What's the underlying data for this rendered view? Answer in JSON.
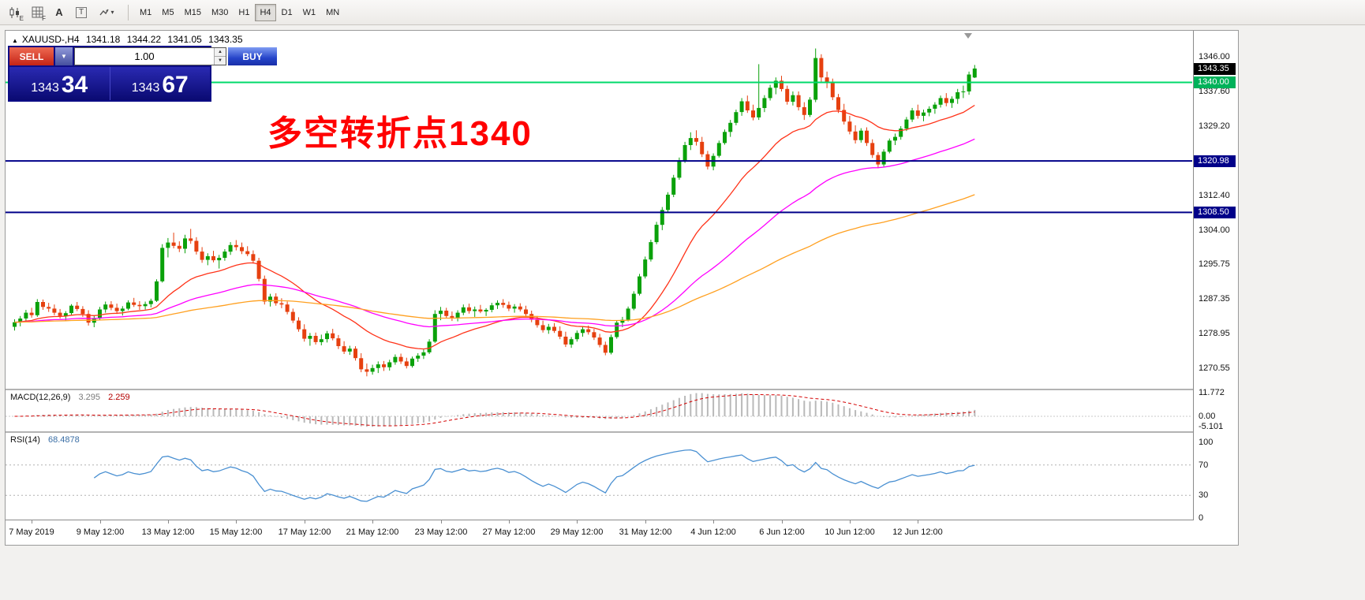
{
  "toolbar": {
    "tools": [
      {
        "name": "candlestick-display-tool",
        "sub": "E"
      },
      {
        "name": "indicator-grid-tool",
        "sub": "F"
      },
      {
        "name": "text-label-tool",
        "label": "A"
      },
      {
        "name": "text-box-tool",
        "label": "T"
      },
      {
        "name": "arrow-style-tool"
      }
    ],
    "timeframes": [
      "M1",
      "M5",
      "M15",
      "M30",
      "H1",
      "H4",
      "D1",
      "W1",
      "MN"
    ],
    "active_timeframe": "H4"
  },
  "chart_header": {
    "symbol_period": "XAUUSD-,H4",
    "open": "1341.18",
    "high": "1344.22",
    "low": "1341.05",
    "close": "1343.35"
  },
  "trade_panel": {
    "sell_label": "SELL",
    "buy_label": "BUY",
    "lot_size": "1.00",
    "bid_small": "1343",
    "bid_big": "34",
    "ask_small": "1343",
    "ask_big": "67"
  },
  "annotation": {
    "text": "多空转折点1340",
    "color": "#ff0000"
  },
  "hlines": [
    {
      "price": 1340.0,
      "color": "#00d96a",
      "width": 2
    },
    {
      "price": 1320.98,
      "color": "#000089",
      "width": 2
    },
    {
      "price": 1308.5,
      "color": "#000089",
      "width": 2
    }
  ],
  "price_axis": {
    "labels": [
      {
        "text": "1346.00",
        "price": 1346.0
      },
      {
        "text": "1337.60",
        "price": 1337.6
      },
      {
        "text": "1329.20",
        "price": 1329.2
      },
      {
        "text": "1312.40",
        "price": 1312.4
      },
      {
        "text": "1304.00",
        "price": 1304.0
      },
      {
        "text": "1295.75",
        "price": 1295.75
      },
      {
        "text": "1287.35",
        "price": 1287.35
      },
      {
        "text": "1278.95",
        "price": 1278.95
      },
      {
        "text": "1270.55",
        "price": 1270.55
      }
    ],
    "badges": [
      {
        "text": "1343.35",
        "price": 1343.35,
        "color": "#000000"
      },
      {
        "text": "1340.00",
        "price": 1340.0,
        "color": "#00b25a"
      },
      {
        "text": "1320.98",
        "price": 1320.98,
        "color": "#000089"
      },
      {
        "text": "1308.50",
        "price": 1308.5,
        "color": "#000089"
      }
    ]
  },
  "indicators": {
    "macd": {
      "label": "MACD(12,26,9)",
      "value_main": "3.295",
      "value_signal": "2.259",
      "axis_labels": [
        "11.772",
        "0.00",
        "-5.101"
      ],
      "fast": 12,
      "slow": 26,
      "signal": 9,
      "histogram_color": "#b9b9b9",
      "signal_color": "#d40000"
    },
    "rsi": {
      "label": "RSI(14)",
      "value": "68.4878",
      "axis_labels": [
        "100",
        "70",
        "30",
        "0"
      ],
      "levels": [
        70,
        30
      ],
      "period": 14,
      "line_color": "#4a90d2"
    }
  },
  "time_axis": {
    "labels": [
      {
        "text": "7 May 2019",
        "idx": 3
      },
      {
        "text": "9 May 12:00",
        "idx": 15
      },
      {
        "text": "13 May 12:00",
        "idx": 27
      },
      {
        "text": "15 May 12:00",
        "idx": 39
      },
      {
        "text": "17 May 12:00",
        "idx": 51
      },
      {
        "text": "21 May 12:00",
        "idx": 63
      },
      {
        "text": "23 May 12:00",
        "idx": 75
      },
      {
        "text": "27 May 12:00",
        "idx": 87
      },
      {
        "text": "29 May 12:00",
        "idx": 99
      },
      {
        "text": "31 May 12:00",
        "idx": 111
      },
      {
        "text": "4 Jun 12:00",
        "idx": 123
      },
      {
        "text": "6 Jun 12:00",
        "idx": 135
      },
      {
        "text": "10 Jun 12:00",
        "idx": 147
      },
      {
        "text": "12 Jun 12:00",
        "idx": 159
      }
    ]
  },
  "chart_data": {
    "type": "candlestick",
    "symbol": "XAUUSD-",
    "timeframe": "H4",
    "up_color": "#0aa10a",
    "down_color": "#e6400f",
    "visible_price_range": [
      1265.8,
      1352.5
    ],
    "moving_averages": [
      {
        "period": 21,
        "color": "#ff3319"
      },
      {
        "period": 55,
        "color": "#ff00ff"
      },
      {
        "period": 120,
        "color": "#ffa020"
      }
    ],
    "ohlc": [
      [
        1280.8,
        1282.6,
        1279.9,
        1281.9
      ],
      [
        1281.9,
        1283.4,
        1280.9,
        1282.8
      ],
      [
        1282.8,
        1284.9,
        1282.2,
        1284.2
      ],
      [
        1284.2,
        1285.4,
        1283.0,
        1283.6
      ],
      [
        1283.6,
        1287.5,
        1283.2,
        1286.8
      ],
      [
        1286.8,
        1287.4,
        1284.9,
        1285.6
      ],
      [
        1285.6,
        1286.6,
        1284.4,
        1285.2
      ],
      [
        1285.2,
        1286.2,
        1283.6,
        1284.2
      ],
      [
        1284.2,
        1285.1,
        1282.8,
        1283.4
      ],
      [
        1283.4,
        1284.6,
        1282.2,
        1284.1
      ],
      [
        1284.1,
        1286.3,
        1283.7,
        1285.9
      ],
      [
        1285.9,
        1286.8,
        1284.6,
        1285.1
      ],
      [
        1285.1,
        1285.8,
        1283.2,
        1283.9
      ],
      [
        1283.9,
        1284.8,
        1281.1,
        1281.8
      ],
      [
        1281.8,
        1283.4,
        1280.7,
        1282.9
      ],
      [
        1282.9,
        1285.6,
        1282.5,
        1285.0
      ],
      [
        1285.0,
        1286.9,
        1284.2,
        1286.2
      ],
      [
        1286.2,
        1287.0,
        1284.8,
        1285.4
      ],
      [
        1285.4,
        1286.4,
        1283.9,
        1284.6
      ],
      [
        1284.6,
        1285.8,
        1283.5,
        1285.2
      ],
      [
        1285.2,
        1287.2,
        1284.8,
        1286.7
      ],
      [
        1286.7,
        1287.8,
        1285.6,
        1286.1
      ],
      [
        1286.1,
        1287.0,
        1284.9,
        1285.8
      ],
      [
        1285.8,
        1286.9,
        1285.0,
        1286.3
      ],
      [
        1286.3,
        1287.6,
        1285.5,
        1287.1
      ],
      [
        1287.1,
        1292.3,
        1286.8,
        1291.8
      ],
      [
        1291.8,
        1300.8,
        1291.5,
        1299.9
      ],
      [
        1299.9,
        1302.3,
        1297.6,
        1301.2
      ],
      [
        1301.2,
        1303.6,
        1299.8,
        1300.4
      ],
      [
        1300.4,
        1301.5,
        1298.9,
        1299.7
      ],
      [
        1299.7,
        1303.1,
        1298.6,
        1302.2
      ],
      [
        1302.2,
        1304.5,
        1300.9,
        1301.6
      ],
      [
        1301.6,
        1302.5,
        1298.3,
        1299.0
      ],
      [
        1299.0,
        1300.1,
        1296.3,
        1297.0
      ],
      [
        1297.0,
        1298.6,
        1295.7,
        1297.9
      ],
      [
        1297.9,
        1299.2,
        1296.4,
        1296.9
      ],
      [
        1296.9,
        1298.2,
        1294.9,
        1297.5
      ],
      [
        1297.5,
        1299.6,
        1296.8,
        1299.0
      ],
      [
        1299.0,
        1301.3,
        1298.2,
        1300.6
      ],
      [
        1300.6,
        1301.8,
        1299.3,
        1300.1
      ],
      [
        1300.1,
        1301.2,
        1298.4,
        1299.1
      ],
      [
        1299.1,
        1300.3,
        1297.9,
        1298.4
      ],
      [
        1298.4,
        1299.3,
        1296.1,
        1296.8
      ],
      [
        1296.8,
        1297.5,
        1291.8,
        1292.4
      ],
      [
        1292.4,
        1293.2,
        1286.2,
        1286.9
      ],
      [
        1286.9,
        1288.8,
        1285.7,
        1288.1
      ],
      [
        1288.1,
        1288.9,
        1285.9,
        1286.5
      ],
      [
        1286.5,
        1287.7,
        1285.3,
        1286.2
      ],
      [
        1286.2,
        1286.9,
        1283.8,
        1284.4
      ],
      [
        1284.4,
        1285.2,
        1281.7,
        1282.3
      ],
      [
        1282.3,
        1283.1,
        1279.6,
        1280.2
      ],
      [
        1280.2,
        1281.4,
        1277.2,
        1277.9
      ],
      [
        1277.9,
        1279.3,
        1276.2,
        1278.6
      ],
      [
        1278.6,
        1279.4,
        1276.5,
        1277.1
      ],
      [
        1277.1,
        1278.9,
        1276.3,
        1277.8
      ],
      [
        1277.8,
        1279.8,
        1277.0,
        1279.2
      ],
      [
        1279.2,
        1280.3,
        1277.5,
        1278.0
      ],
      [
        1278.0,
        1278.8,
        1275.4,
        1276.1
      ],
      [
        1276.1,
        1277.3,
        1274.2,
        1274.8
      ],
      [
        1274.8,
        1276.2,
        1274.0,
        1275.5
      ],
      [
        1275.5,
        1276.1,
        1272.6,
        1273.2
      ],
      [
        1273.2,
        1274.4,
        1269.8,
        1270.5
      ],
      [
        1270.5,
        1271.9,
        1268.8,
        1269.9
      ],
      [
        1269.9,
        1271.6,
        1269.2,
        1270.8
      ],
      [
        1270.8,
        1272.4,
        1269.6,
        1271.7
      ],
      [
        1271.7,
        1272.5,
        1270.1,
        1271.0
      ],
      [
        1271.0,
        1272.8,
        1270.2,
        1272.2
      ],
      [
        1272.2,
        1274.1,
        1271.6,
        1273.5
      ],
      [
        1273.5,
        1274.3,
        1271.8,
        1272.4
      ],
      [
        1272.4,
        1273.3,
        1270.7,
        1271.3
      ],
      [
        1271.3,
        1273.6,
        1270.9,
        1273.1
      ],
      [
        1273.1,
        1274.4,
        1272.3,
        1273.8
      ],
      [
        1273.8,
        1275.3,
        1273.0,
        1274.6
      ],
      [
        1274.6,
        1277.8,
        1274.2,
        1277.2
      ],
      [
        1277.2,
        1284.8,
        1276.9,
        1283.9
      ],
      [
        1283.9,
        1285.6,
        1282.4,
        1284.7
      ],
      [
        1284.7,
        1285.4,
        1282.8,
        1283.4
      ],
      [
        1283.4,
        1284.5,
        1282.2,
        1283.0
      ],
      [
        1283.0,
        1284.8,
        1282.1,
        1284.2
      ],
      [
        1284.2,
        1286.2,
        1283.6,
        1285.5
      ],
      [
        1285.5,
        1286.4,
        1284.0,
        1284.6
      ],
      [
        1284.6,
        1285.7,
        1283.2,
        1285.0
      ],
      [
        1285.0,
        1286.1,
        1284.1,
        1284.5
      ],
      [
        1284.5,
        1285.3,
        1283.4,
        1284.9
      ],
      [
        1284.9,
        1286.6,
        1284.3,
        1286.0
      ],
      [
        1286.0,
        1287.2,
        1285.1,
        1286.6
      ],
      [
        1286.6,
        1287.5,
        1285.4,
        1286.1
      ],
      [
        1286.1,
        1286.9,
        1284.6,
        1285.2
      ],
      [
        1285.2,
        1286.3,
        1284.2,
        1285.7
      ],
      [
        1285.7,
        1286.5,
        1284.5,
        1285.0
      ],
      [
        1285.0,
        1285.9,
        1283.3,
        1283.9
      ],
      [
        1283.9,
        1284.7,
        1281.9,
        1282.5
      ],
      [
        1282.5,
        1283.4,
        1280.6,
        1281.2
      ],
      [
        1281.2,
        1282.3,
        1279.4,
        1280.0
      ],
      [
        1280.0,
        1281.5,
        1279.1,
        1280.8
      ],
      [
        1280.8,
        1281.7,
        1279.3,
        1279.8
      ],
      [
        1279.8,
        1280.9,
        1277.8,
        1278.4
      ],
      [
        1278.4,
        1279.6,
        1275.9,
        1276.5
      ],
      [
        1276.5,
        1278.3,
        1275.7,
        1277.8
      ],
      [
        1277.8,
        1279.9,
        1277.2,
        1279.3
      ],
      [
        1279.3,
        1280.8,
        1278.4,
        1280.2
      ],
      [
        1280.2,
        1281.1,
        1278.9,
        1279.5
      ],
      [
        1279.5,
        1280.3,
        1277.6,
        1278.2
      ],
      [
        1278.2,
        1279.1,
        1275.8,
        1276.4
      ],
      [
        1276.4,
        1277.2,
        1273.9,
        1274.5
      ],
      [
        1274.5,
        1278.9,
        1274.1,
        1278.3
      ],
      [
        1278.3,
        1282.4,
        1277.9,
        1281.8
      ],
      [
        1281.8,
        1283.2,
        1280.7,
        1282.5
      ],
      [
        1282.5,
        1285.7,
        1282.1,
        1285.2
      ],
      [
        1285.2,
        1289.4,
        1284.8,
        1288.8
      ],
      [
        1288.8,
        1293.6,
        1288.4,
        1293.0
      ],
      [
        1293.0,
        1297.8,
        1292.5,
        1297.1
      ],
      [
        1297.1,
        1301.9,
        1296.6,
        1301.3
      ],
      [
        1301.3,
        1306.2,
        1300.8,
        1305.5
      ],
      [
        1305.5,
        1309.8,
        1304.2,
        1309.1
      ],
      [
        1309.1,
        1313.4,
        1308.6,
        1312.8
      ],
      [
        1312.8,
        1317.6,
        1312.2,
        1316.9
      ],
      [
        1316.9,
        1321.8,
        1316.4,
        1321.1
      ],
      [
        1321.1,
        1325.6,
        1320.5,
        1324.8
      ],
      [
        1324.8,
        1327.9,
        1323.6,
        1326.5
      ],
      [
        1326.5,
        1328.4,
        1324.7,
        1325.6
      ],
      [
        1325.6,
        1326.8,
        1321.9,
        1322.6
      ],
      [
        1322.6,
        1323.4,
        1318.9,
        1319.6
      ],
      [
        1319.6,
        1322.8,
        1318.7,
        1322.2
      ],
      [
        1322.2,
        1325.9,
        1321.8,
        1325.3
      ],
      [
        1325.3,
        1328.6,
        1324.9,
        1328.0
      ],
      [
        1328.0,
        1330.9,
        1326.8,
        1330.2
      ],
      [
        1330.2,
        1333.4,
        1329.6,
        1332.8
      ],
      [
        1332.8,
        1336.2,
        1331.9,
        1335.4
      ],
      [
        1335.4,
        1336.8,
        1332.6,
        1333.2
      ],
      [
        1333.2,
        1334.6,
        1330.8,
        1331.5
      ],
      [
        1331.5,
        1344.4,
        1330.9,
        1333.8
      ],
      [
        1333.8,
        1336.9,
        1332.8,
        1336.2
      ],
      [
        1336.2,
        1339.4,
        1335.6,
        1338.7
      ],
      [
        1338.7,
        1341.2,
        1337.1,
        1340.4
      ],
      [
        1340.4,
        1341.6,
        1337.8,
        1338.4
      ],
      [
        1338.4,
        1339.2,
        1334.6,
        1335.3
      ],
      [
        1335.3,
        1337.8,
        1334.4,
        1336.9
      ],
      [
        1336.9,
        1337.8,
        1333.2,
        1334.0
      ],
      [
        1334.0,
        1335.2,
        1330.9,
        1332.1
      ],
      [
        1332.1,
        1336.4,
        1331.6,
        1335.8
      ],
      [
        1335.8,
        1348.2,
        1335.2,
        1345.9
      ],
      [
        1345.9,
        1346.8,
        1339.8,
        1341.2
      ],
      [
        1341.2,
        1342.6,
        1338.6,
        1340.1
      ],
      [
        1340.1,
        1340.9,
        1335.7,
        1336.4
      ],
      [
        1336.4,
        1337.2,
        1332.6,
        1333.3
      ],
      [
        1333.3,
        1334.8,
        1329.8,
        1330.5
      ],
      [
        1330.5,
        1331.9,
        1327.4,
        1328.1
      ],
      [
        1328.1,
        1329.6,
        1325.2,
        1326.0
      ],
      [
        1326.0,
        1328.9,
        1325.4,
        1328.3
      ],
      [
        1328.3,
        1329.1,
        1324.6,
        1325.3
      ],
      [
        1325.3,
        1326.2,
        1321.7,
        1322.4
      ],
      [
        1322.4,
        1323.1,
        1319.2,
        1320.1
      ],
      [
        1320.1,
        1323.8,
        1319.6,
        1323.2
      ],
      [
        1323.2,
        1326.4,
        1322.8,
        1325.9
      ],
      [
        1325.9,
        1327.6,
        1324.8,
        1326.8
      ],
      [
        1326.8,
        1329.4,
        1326.1,
        1328.8
      ],
      [
        1328.8,
        1331.6,
        1328.2,
        1331.0
      ],
      [
        1331.0,
        1333.8,
        1330.4,
        1333.2
      ],
      [
        1333.2,
        1334.6,
        1331.2,
        1331.9
      ],
      [
        1331.9,
        1333.4,
        1330.6,
        1332.7
      ],
      [
        1332.7,
        1334.2,
        1331.8,
        1333.6
      ],
      [
        1333.6,
        1335.2,
        1332.4,
        1334.6
      ],
      [
        1334.6,
        1336.8,
        1333.9,
        1336.2
      ],
      [
        1336.2,
        1337.4,
        1334.2,
        1335.0
      ],
      [
        1335.0,
        1336.6,
        1333.8,
        1336.0
      ],
      [
        1336.0,
        1338.4,
        1334.8,
        1337.6
      ],
      [
        1337.6,
        1339.2,
        1336.2,
        1337.8
      ],
      [
        1337.8,
        1342.6,
        1337.0,
        1341.9
      ],
      [
        1341.18,
        1344.22,
        1341.05,
        1343.35
      ]
    ]
  }
}
